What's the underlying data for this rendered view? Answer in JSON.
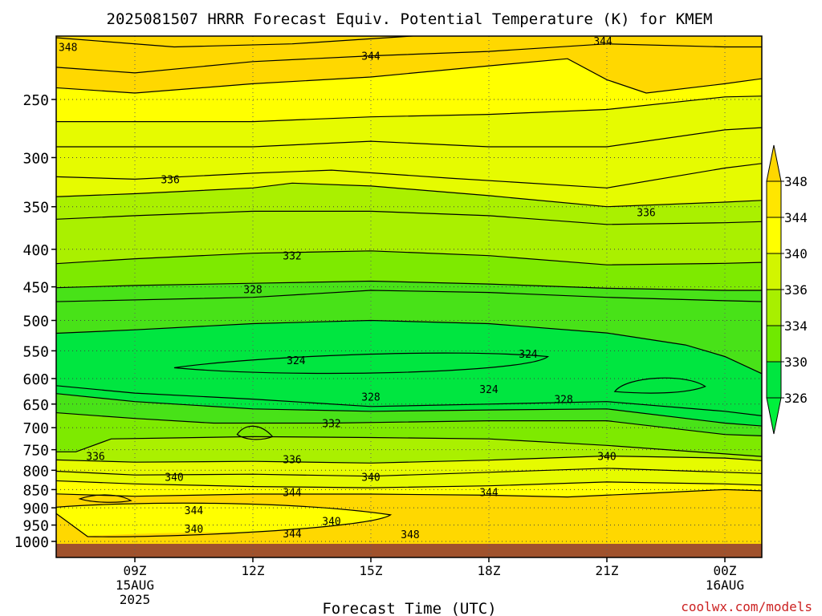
{
  "chart_data": {
    "type": "heatmap",
    "title": "2025081507 HRRR Forecast Equiv. Potential Temperature (K) for KMEM",
    "xlabel": "Forecast Time (UTC)",
    "ylabel": "",
    "credit": "coolwx.com/models",
    "x_range_hours": [
      7.0,
      25.2
    ],
    "y_range_hpa": [
      200,
      1030
    ],
    "y_ticks": [
      {
        "p": 250,
        "label": "250"
      },
      {
        "p": 300,
        "label": "300"
      },
      {
        "p": 350,
        "label": "350"
      },
      {
        "p": 400,
        "label": "400"
      },
      {
        "p": 450,
        "label": "450"
      },
      {
        "p": 500,
        "label": "500"
      },
      {
        "p": 550,
        "label": "550"
      },
      {
        "p": 600,
        "label": "600"
      },
      {
        "p": 650,
        "label": "650"
      },
      {
        "p": 700,
        "label": "700"
      },
      {
        "p": 750,
        "label": "750"
      },
      {
        "p": 800,
        "label": "800"
      },
      {
        "p": 850,
        "label": "850"
      },
      {
        "p": 900,
        "label": "900"
      },
      {
        "p": 950,
        "label": "950"
      },
      {
        "p": 1000,
        "label": "1000"
      }
    ],
    "x_ticks": [
      {
        "hour": 9,
        "lines": [
          "09Z",
          "15AUG",
          "2025"
        ]
      },
      {
        "hour": 12,
        "lines": [
          "12Z"
        ]
      },
      {
        "hour": 15,
        "lines": [
          "15Z"
        ]
      },
      {
        "hour": 18,
        "lines": [
          "18Z"
        ]
      },
      {
        "hour": 21,
        "lines": [
          "21Z"
        ]
      },
      {
        "hour": 24,
        "lines": [
          "00Z",
          "16AUG"
        ]
      }
    ],
    "legend": {
      "placement": "right",
      "levels": [
        "348",
        "344",
        "340",
        "336",
        "334",
        "330",
        "326"
      ],
      "colors": [
        "#ffd700",
        "#ffe600",
        "#ffff00",
        "#d2f500",
        "#a8ef00",
        "#70e900",
        "#00e640",
        "#00f03c"
      ]
    },
    "band_colors": {
      "b324": "#00f03c",
      "b326": "#00e640",
      "b330": "#48e218",
      "b334": "#7eea00",
      "b336": "#aaf000",
      "b340": "#e6fb00",
      "b344": "#ffff00",
      "b348": "#ffd800",
      "b352": "#ffc800",
      "ground": "#a0522d"
    },
    "profile_at_15Z": [
      {
        "p": 250,
        "theta_e": 343
      },
      {
        "p": 300,
        "theta_e": 338
      },
      {
        "p": 350,
        "theta_e": 335
      },
      {
        "p": 400,
        "theta_e": 332
      },
      {
        "p": 450,
        "theta_e": 329
      },
      {
        "p": 500,
        "theta_e": 326
      },
      {
        "p": 550,
        "theta_e": 324
      },
      {
        "p": 600,
        "theta_e": 324
      },
      {
        "p": 650,
        "theta_e": 328
      },
      {
        "p": 700,
        "theta_e": 332
      },
      {
        "p": 750,
        "theta_e": 335
      },
      {
        "p": 800,
        "theta_e": 338
      },
      {
        "p": 850,
        "theta_e": 343
      },
      {
        "p": 900,
        "theta_e": 345
      },
      {
        "p": 950,
        "theta_e": 344
      },
      {
        "p": 1000,
        "theta_e": 348
      }
    ],
    "contour_labels": [
      {
        "text": "348",
        "hour": 7.3,
        "p": 212
      },
      {
        "text": "344",
        "hour": 15.0,
        "p": 218
      },
      {
        "text": "344",
        "hour": 20.9,
        "p": 208
      },
      {
        "text": "336",
        "hour": 9.9,
        "p": 321
      },
      {
        "text": "336",
        "hour": 22.0,
        "p": 356
      },
      {
        "text": "332",
        "hour": 13.0,
        "p": 408
      },
      {
        "text": "328",
        "hour": 12.0,
        "p": 453
      },
      {
        "text": "324",
        "hour": 13.1,
        "p": 566
      },
      {
        "text": "324",
        "hour": 19.0,
        "p": 555
      },
      {
        "text": "324",
        "hour": 18.0,
        "p": 620
      },
      {
        "text": "328",
        "hour": 15.0,
        "p": 635
      },
      {
        "text": "328",
        "hour": 19.9,
        "p": 640
      },
      {
        "text": "332",
        "hour": 14.0,
        "p": 690
      },
      {
        "text": "336",
        "hour": 8.0,
        "p": 765
      },
      {
        "text": "336",
        "hour": 13.0,
        "p": 773
      },
      {
        "text": "340",
        "hour": 10.0,
        "p": 817
      },
      {
        "text": "340",
        "hour": 15.0,
        "p": 817
      },
      {
        "text": "340",
        "hour": 21.0,
        "p": 765
      },
      {
        "text": "344",
        "hour": 13.0,
        "p": 857
      },
      {
        "text": "344",
        "hour": 18.0,
        "p": 857
      },
      {
        "text": "344",
        "hour": 10.5,
        "p": 907
      },
      {
        "text": "340",
        "hour": 14.0,
        "p": 938
      },
      {
        "text": "340",
        "hour": 10.5,
        "p": 960
      },
      {
        "text": "344",
        "hour": 13.0,
        "p": 975
      },
      {
        "text": "348",
        "hour": 16.0,
        "p": 978
      }
    ]
  }
}
